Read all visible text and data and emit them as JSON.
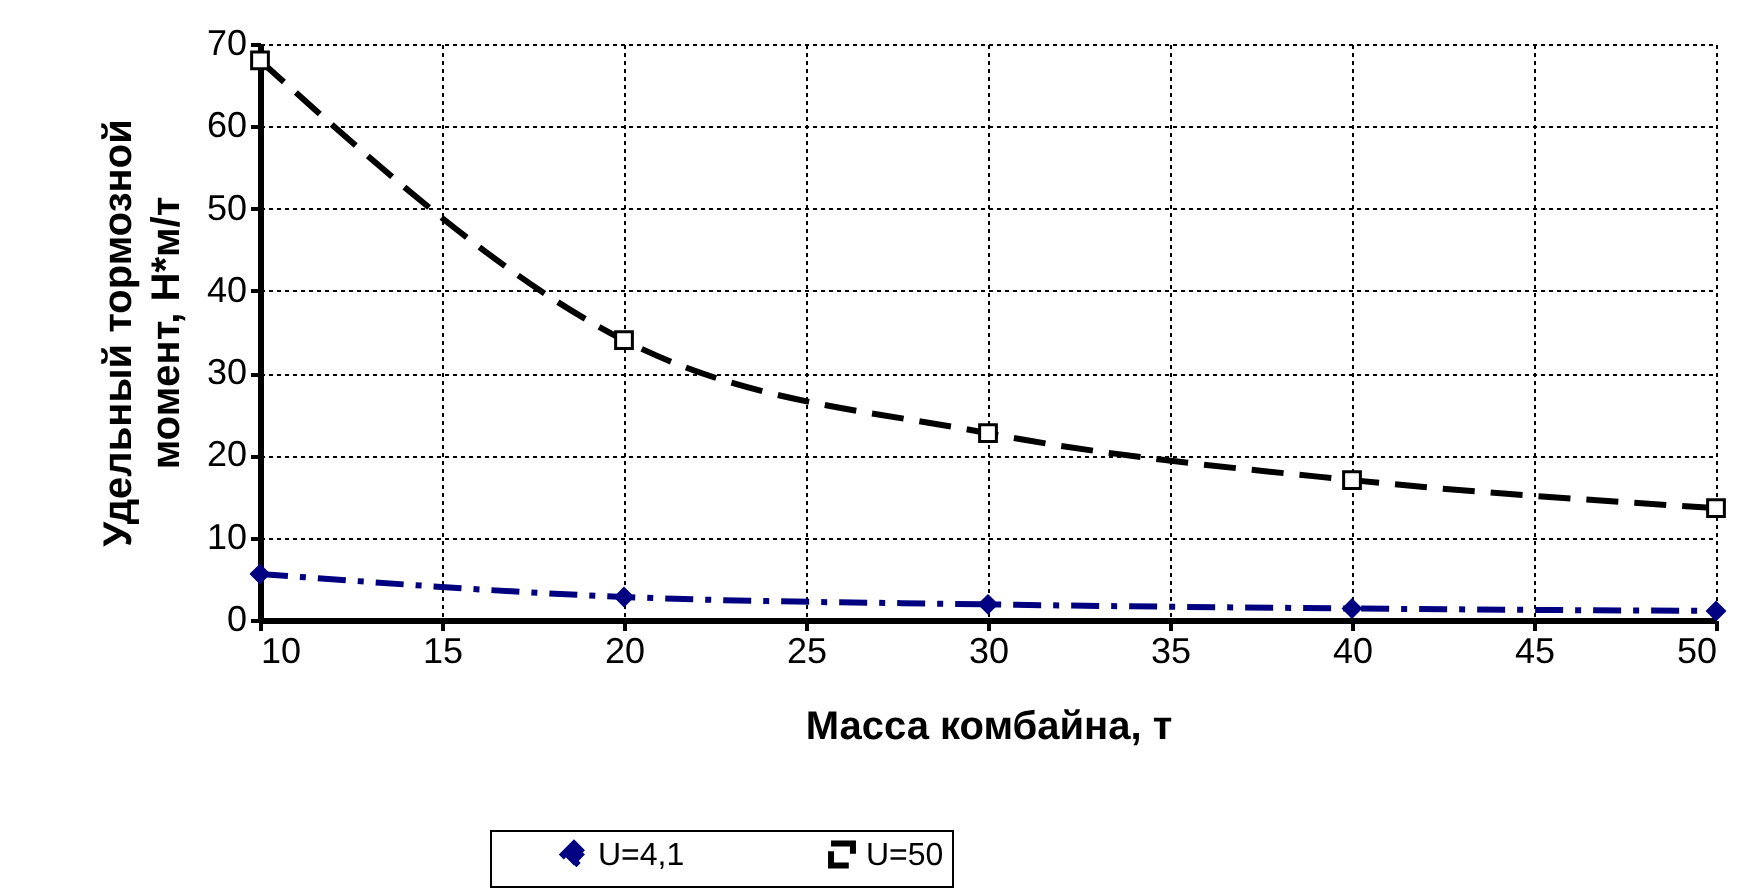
{
  "chart_data": {
    "type": "line",
    "xlabel": "Масса комбайна, т",
    "ylabel": "Удельный тормозной момент, Н*м/т",
    "x": [
      10,
      20,
      30,
      40,
      50
    ],
    "series": [
      {
        "name": "U=4,1",
        "color": "#000080",
        "marker": "diamond",
        "line_style": "dashdot",
        "values": [
          5.6,
          2.8,
          1.9,
          1.4,
          1.1
        ]
      },
      {
        "name": "U=50",
        "color": "#000000",
        "marker": "square",
        "line_style": "dashed",
        "values": [
          68,
          34,
          22.7,
          17,
          13.6
        ]
      }
    ],
    "xlim": [
      10,
      50
    ],
    "xticks": [
      10,
      15,
      20,
      25,
      30,
      35,
      40,
      45,
      50
    ],
    "ylim": [
      0,
      70
    ],
    "yticks": [
      0,
      10,
      20,
      30,
      40,
      50,
      60,
      70
    ],
    "grid": true,
    "legend": "bottom"
  }
}
